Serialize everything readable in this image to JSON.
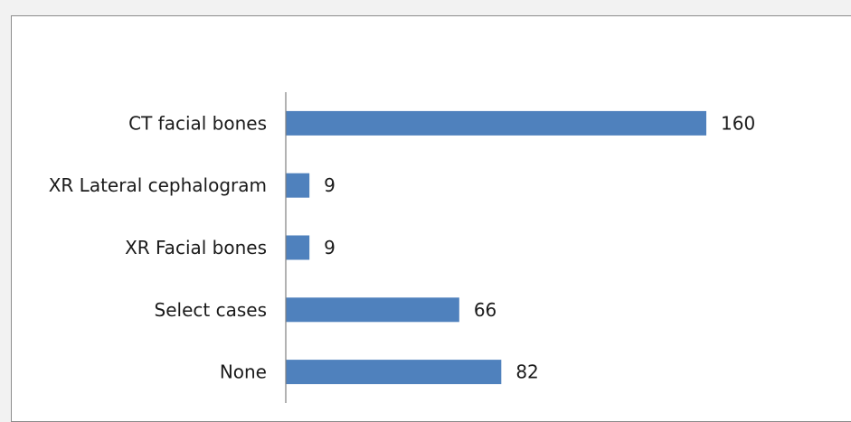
{
  "chart_data": {
    "type": "bar",
    "orientation": "horizontal",
    "categories": [
      "CT facial bones",
      "XR Lateral cephalogram",
      "XR Facial bones",
      "Select cases",
      "None"
    ],
    "values": [
      160,
      9,
      9,
      66,
      82
    ],
    "title": "",
    "xlabel": "",
    "ylabel": "",
    "xlim": [
      0,
      170
    ],
    "grid": false,
    "legend": "none",
    "data_labels": true,
    "bar_color": "#4f81bd"
  }
}
